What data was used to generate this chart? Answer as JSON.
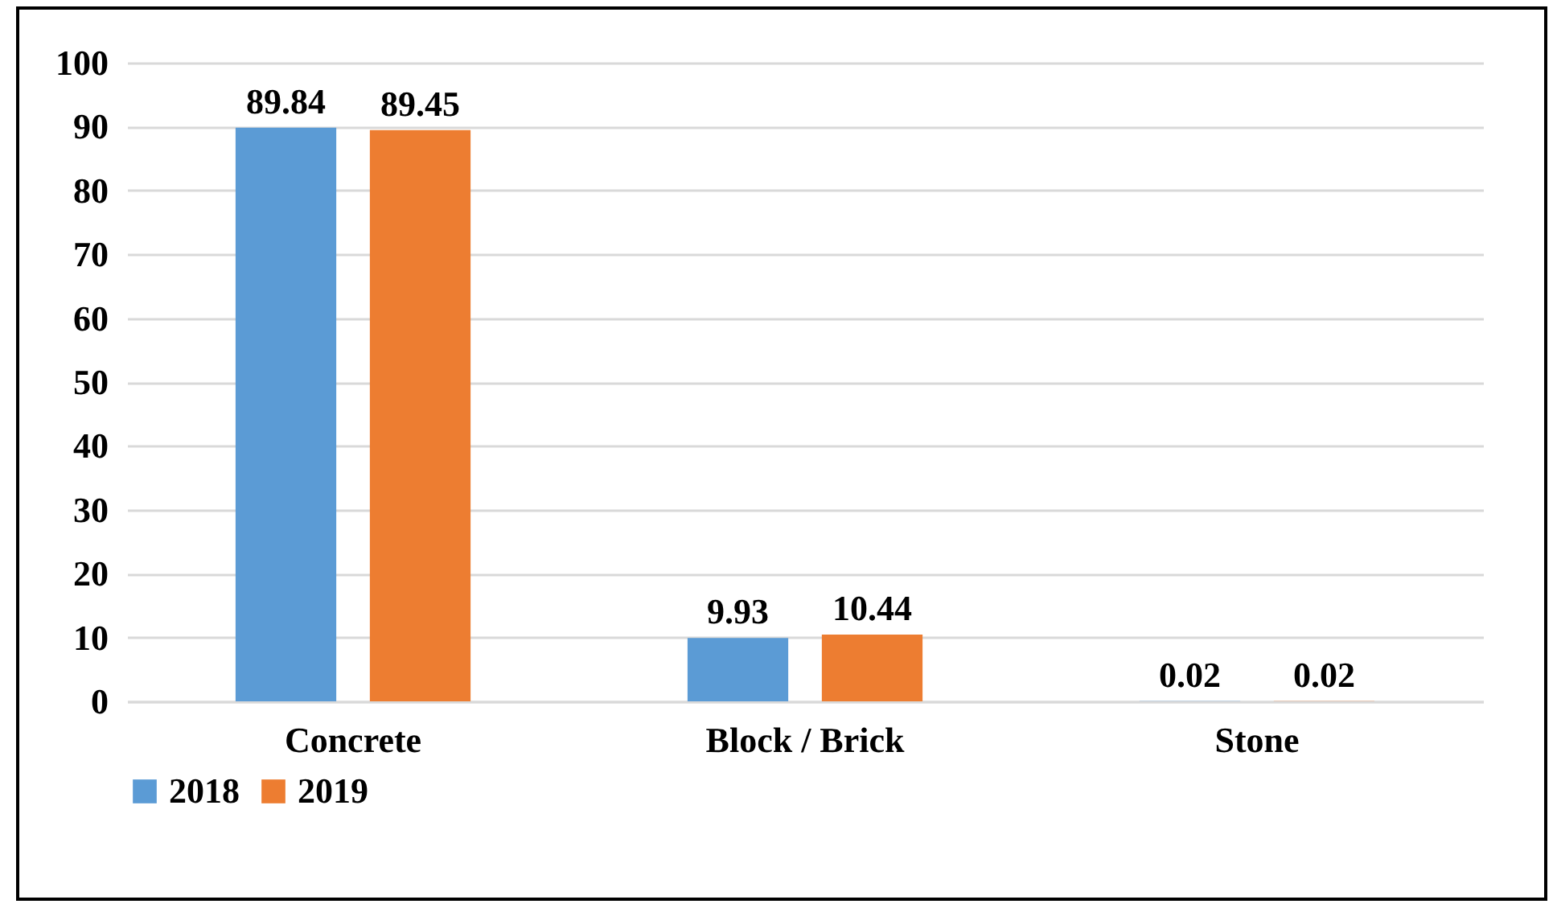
{
  "chart_data": {
    "type": "bar",
    "categories": [
      "Concrete",
      "Block / Brick",
      "Stone"
    ],
    "series": [
      {
        "name": "2018",
        "color": "#5b9bd5",
        "values": [
          89.84,
          9.93,
          0.02
        ]
      },
      {
        "name": "2019",
        "color": "#ed7d31",
        "values": [
          89.45,
          10.44,
          0.02
        ]
      }
    ],
    "ylim": [
      0,
      100
    ],
    "yticks": [
      0,
      10,
      20,
      30,
      40,
      50,
      60,
      70,
      80,
      90,
      100
    ],
    "grid": "y",
    "legend": "bottom",
    "data_labels": true
  }
}
